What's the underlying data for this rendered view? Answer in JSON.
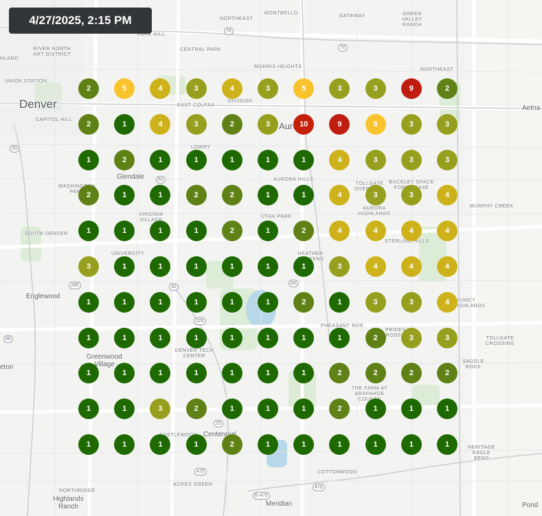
{
  "timestamp": "4/27/2025, 2:15 PM",
  "colors": {
    "1": "#1e6a00",
    "2": "#5f8116",
    "3": "#979f1e",
    "4": "#ceb21b",
    "5": "#f8c32c",
    "9": "#bf1d0f",
    "10": "#c4200c"
  },
  "grid": {
    "rows": [
      [
        2,
        5,
        4,
        3,
        4,
        3,
        5,
        3,
        3,
        9,
        2
      ],
      [
        2,
        1,
        4,
        3,
        2,
        3,
        10,
        9,
        5,
        3,
        3
      ],
      [
        1,
        2,
        1,
        1,
        1,
        1,
        1,
        4,
        3,
        3,
        3
      ],
      [
        2,
        1,
        1,
        2,
        2,
        1,
        1,
        4,
        3,
        3,
        4
      ],
      [
        1,
        1,
        1,
        1,
        2,
        1,
        2,
        4,
        4,
        4,
        4
      ],
      [
        3,
        1,
        1,
        1,
        1,
        1,
        1,
        3,
        4,
        4,
        4
      ],
      [
        1,
        1,
        1,
        1,
        1,
        1,
        2,
        1,
        3,
        3,
        4
      ],
      [
        1,
        1,
        1,
        1,
        1,
        1,
        1,
        1,
        2,
        3,
        3
      ],
      [
        1,
        1,
        1,
        1,
        1,
        1,
        1,
        2,
        2,
        2,
        2
      ],
      [
        1,
        1,
        3,
        2,
        1,
        1,
        1,
        2,
        1,
        1,
        1
      ],
      [
        1,
        1,
        1,
        1,
        2,
        1,
        1,
        1,
        1,
        1,
        1
      ]
    ]
  },
  "map_labels": {
    "denver": "Denver",
    "aurora": "Aurora",
    "glendale": "Glendale",
    "englewood": "Englewood",
    "greenwood_village": "Greenwood Village",
    "centennial": "Centennial",
    "highlands_ranch": "Highlands Ranch",
    "meridian": "Meridian",
    "aetna": "Aetna",
    "pond": "Pond",
    "eton": "eton",
    "northeast": "NORTHEAST",
    "montbello": "MONTBELLO",
    "gateway": "GATEWAY",
    "green_valley_ranch": "GREEN VALLEY RANCH",
    "river_north_art_district": "RIVER NORTH ART DISTRICT",
    "central_park": "CENTRAL PARK",
    "morris_heights": "MORRIS HEIGHTS",
    "northeast_2": "NORTHEAST",
    "union_station": "UNION STATION",
    "capitol_hill": "CAPITOL HILL",
    "east_colfax": "EAST COLFAX",
    "division": "DIVISION",
    "lowry": "LOWRY",
    "washington_park": "WASHINGTON PARK",
    "virginia_village": "VIRGINIA VILLAGE",
    "aurora_hills": "AURORA HILLS",
    "tollgate_overlook": "TOLLGATE OVERLOOK",
    "buckley_space_force_base": "BUCKLEY SPACE FORCE BASE",
    "murphy_creek": "MURPHY CREEK",
    "aurora_highlands": "AURORA HIGHLANDS",
    "utah_park": "UTAH PARK",
    "sterling_hills": "STERLING HILLS",
    "south_denver": "SOUTH DENVER",
    "university": "UNIVERSITY",
    "heather_gardens": "HEATHER GARDENS",
    "quincy_highlands": "QUINCY HIGHLANDS",
    "pheasant_run": "PHEASANT RUN",
    "prides_crossing": "PRIDES CROSSING",
    "tollgate_crossing": "TOLLGATE CROSSING",
    "denver_tech_center": "DENVER TECH CENTER",
    "saddle_rock": "SADDLE ROCK",
    "the_farm_at_arapahoe_county": "THE FARM AT ARAPAHOE COUNTY",
    "castlewood": "CASTLEWOOD",
    "heritage_eagle_bend": "HERITAGE EAGLE BEND",
    "cottonwood": "COTTONWOOD",
    "northridge": "NORTHRIDGE",
    "acres_green": "ACRES GREEN",
    "park_hill": "PARK HILL",
    "hland": "HLAND"
  },
  "highway_shields": [
    "70",
    "70",
    "25",
    "225",
    "25",
    "83",
    "285",
    "30",
    "85",
    "83",
    "470",
    "E-470",
    "470"
  ]
}
